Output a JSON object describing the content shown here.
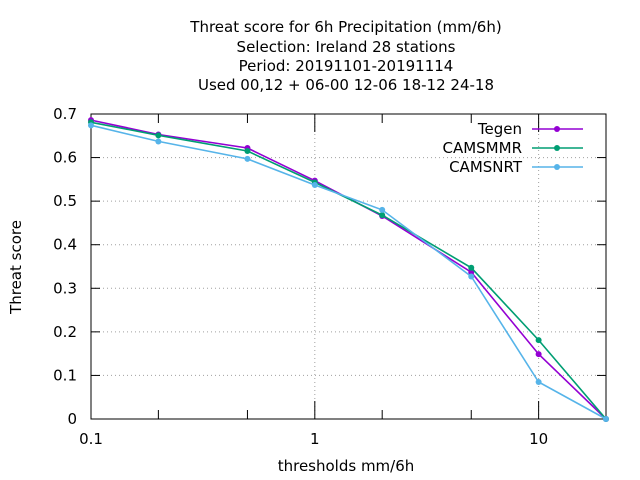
{
  "chart_data": {
    "type": "line",
    "title_lines": [
      "Threat score  for 6h Precipitation (mm/6h)",
      "Selection: Ireland      28 stations",
      "Period: 20191101-20191114",
      "Used  00,12  + 06-00 12-06 18-12 24-18"
    ],
    "xlabel": "thresholds mm/6h",
    "ylabel": "Threat score",
    "x_scale": "log",
    "xlim": [
      0.1,
      20
    ],
    "ylim": [
      0,
      0.7
    ],
    "x_ticks": [
      {
        "value": 0.1,
        "label": "0.1"
      },
      {
        "value": 1,
        "label": "1"
      },
      {
        "value": 10,
        "label": "10"
      }
    ],
    "x_minor_ticks": [
      0.2,
      0.5,
      2,
      5,
      20
    ],
    "y_ticks": [
      {
        "value": 0,
        "label": "0"
      },
      {
        "value": 0.1,
        "label": "0.1"
      },
      {
        "value": 0.2,
        "label": "0.2"
      },
      {
        "value": 0.3,
        "label": "0.3"
      },
      {
        "value": 0.4,
        "label": "0.4"
      },
      {
        "value": 0.5,
        "label": "0.5"
      },
      {
        "value": 0.6,
        "label": "0.6"
      },
      {
        "value": 0.7,
        "label": "0.7"
      }
    ],
    "grid": true,
    "legend_position": "top-right",
    "x": [
      0.1,
      0.2,
      0.5,
      1,
      2,
      5,
      10,
      20
    ],
    "series": [
      {
        "name": "Tegen",
        "color": "#9400d3",
        "marker": "filled-circle",
        "values": [
          0.686,
          0.653,
          0.622,
          0.547,
          0.466,
          0.337,
          0.149,
          0.0
        ]
      },
      {
        "name": "CAMSMMR",
        "color": "#009e73",
        "marker": "filled-circle",
        "values": [
          0.681,
          0.651,
          0.615,
          0.543,
          0.468,
          0.347,
          0.181,
          0.0
        ]
      },
      {
        "name": "CAMSNRT",
        "color": "#56b4e9",
        "marker": "filled-circle",
        "values": [
          0.674,
          0.637,
          0.597,
          0.537,
          0.48,
          0.327,
          0.085,
          0.0
        ]
      }
    ]
  }
}
